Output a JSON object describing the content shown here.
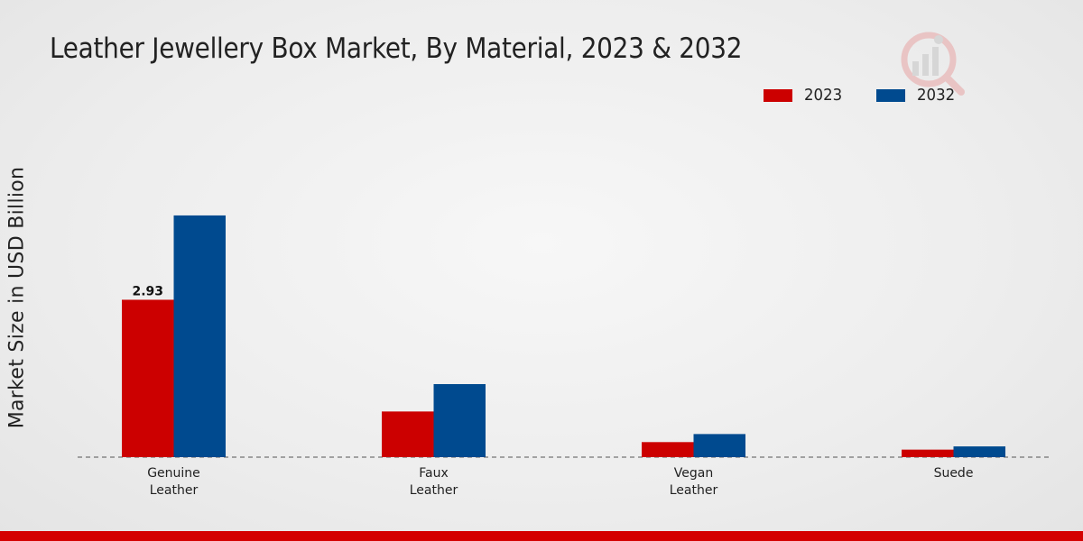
{
  "chart_data": {
    "type": "bar",
    "title": "Leather Jewellery Box Market, By Material, 2023 & 2032",
    "xlabel": "",
    "ylabel": "Market Size in USD Billion",
    "categories": [
      [
        "Genuine",
        "Leather"
      ],
      [
        "Faux",
        "Leather"
      ],
      [
        "Vegan",
        "Leather"
      ],
      [
        "Suede"
      ]
    ],
    "series": [
      {
        "name": "2023",
        "color": "#cc0000",
        "values": [
          2.93,
          0.85,
          0.28,
          0.14
        ]
      },
      {
        "name": "2032",
        "color": "#004a8f",
        "values": [
          4.5,
          1.36,
          0.43,
          0.2
        ]
      }
    ],
    "data_labels": [
      {
        "series": 0,
        "category": 0,
        "text": "2.93"
      }
    ],
    "ylim": [
      0,
      7
    ],
    "grid": false,
    "legend_position": "top-right"
  },
  "colors": {
    "footer": "#d40000",
    "baseline": "#555555"
  },
  "logo_icon": "market-research-logo-icon"
}
